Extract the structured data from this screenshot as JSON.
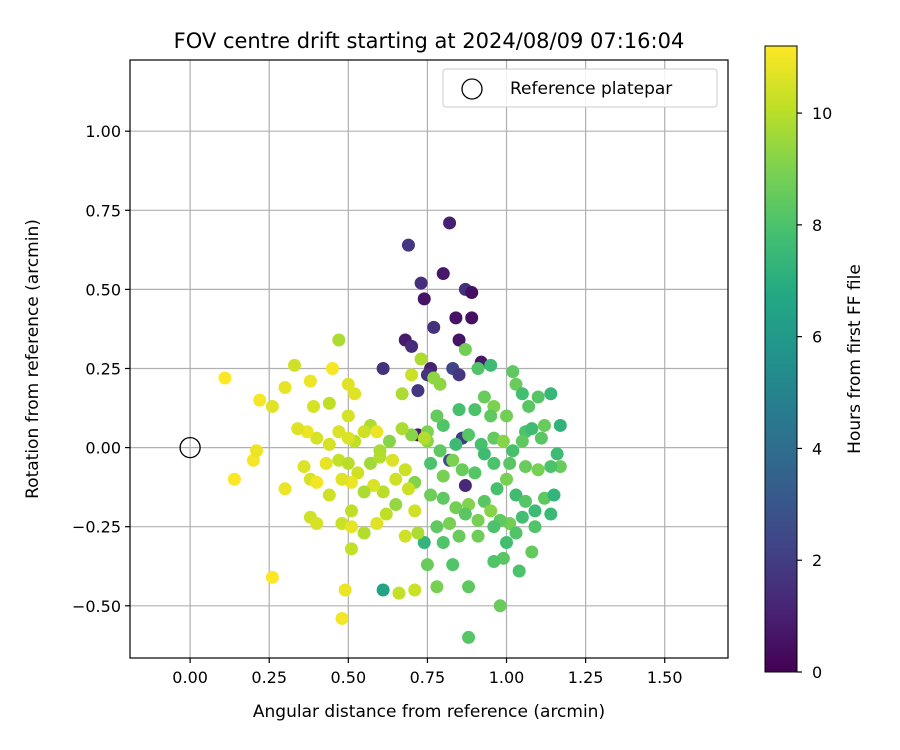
{
  "chart_data": {
    "type": "scatter",
    "title": "FOV centre drift starting at 2024/08/09 07:16:04",
    "xlabel": "Angular distance from reference (arcmin)",
    "ylabel": "Rotation from reference (arcmin)",
    "xlim": [
      -0.19,
      1.7
    ],
    "ylim": [
      -0.665,
      1.225
    ],
    "xticks": [
      0.0,
      0.25,
      0.5,
      0.75,
      1.0,
      1.25,
      1.5
    ],
    "xtick_labels": [
      "0.00",
      "0.25",
      "0.50",
      "0.75",
      "1.00",
      "1.25",
      "1.50"
    ],
    "yticks": [
      -0.5,
      -0.25,
      0.0,
      0.25,
      0.5,
      0.75,
      1.0
    ],
    "ytick_labels": [
      "−0.50",
      "−0.25",
      "0.00",
      "0.25",
      "0.50",
      "0.75",
      "1.00"
    ],
    "grid": true,
    "legend": {
      "placement": "top-right",
      "entries": [
        "Reference platepar"
      ]
    },
    "reference_point": {
      "x": 0.0,
      "y": 0.0,
      "marker": "open-circle",
      "label": "Reference platepar"
    },
    "colorbar": {
      "label": "Hours from first FF file",
      "range": [
        0,
        11.2
      ],
      "ticks": [
        0,
        2,
        4,
        6,
        8,
        10
      ],
      "tick_labels": [
        "0",
        "2",
        "4",
        "6",
        "8",
        "10"
      ],
      "colormap": "viridis"
    },
    "series": [
      {
        "c": "hours_from_first_ff_file",
        "points": [
          [
            0.82,
            0.71,
            1.0
          ],
          [
            0.69,
            0.64,
            1.8
          ],
          [
            0.8,
            0.55,
            0.7
          ],
          [
            0.73,
            0.52,
            1.5
          ],
          [
            0.87,
            0.5,
            1.6
          ],
          [
            0.89,
            0.49,
            0.4
          ],
          [
            0.74,
            0.47,
            0.6
          ],
          [
            0.84,
            0.41,
            0.6
          ],
          [
            0.89,
            0.41,
            0.5
          ],
          [
            0.77,
            0.38,
            1.6
          ],
          [
            0.68,
            0.34,
            0.8
          ],
          [
            0.85,
            0.34,
            0.6
          ],
          [
            0.7,
            0.32,
            1.4
          ],
          [
            0.61,
            0.25,
            1.6
          ],
          [
            0.76,
            0.25,
            1.0
          ],
          [
            0.75,
            0.23,
            1.6
          ],
          [
            0.83,
            0.25,
            2.3
          ],
          [
            0.92,
            0.27,
            0.7
          ],
          [
            0.72,
            0.18,
            1.8
          ],
          [
            0.85,
            0.23,
            1.8
          ],
          [
            0.72,
            0.04,
            0.9
          ],
          [
            0.86,
            0.03,
            1.9
          ],
          [
            0.87,
            -0.12,
            1.3
          ],
          [
            0.82,
            -0.04,
            2.6
          ],
          [
            0.73,
            0.28,
            9.8
          ],
          [
            0.77,
            0.22,
            9.3
          ],
          [
            0.79,
            0.2,
            9.3
          ],
          [
            0.87,
            0.31,
            8.8
          ],
          [
            0.91,
            0.25,
            8.1
          ],
          [
            0.95,
            0.26,
            7.6
          ],
          [
            1.02,
            0.24,
            8.4
          ],
          [
            1.03,
            0.2,
            8.6
          ],
          [
            1.05,
            0.17,
            7.8
          ],
          [
            1.07,
            0.13,
            8.3
          ],
          [
            1.1,
            0.16,
            8.2
          ],
          [
            1.14,
            0.17,
            7.4
          ],
          [
            1.17,
            0.07,
            7.2
          ],
          [
            1.12,
            0.07,
            8.6
          ],
          [
            1.06,
            0.05,
            8.0
          ],
          [
            1.0,
            0.1,
            8.8
          ],
          [
            0.96,
            0.13,
            9.0
          ],
          [
            0.93,
            0.16,
            8.6
          ],
          [
            0.95,
            0.1,
            8.4
          ],
          [
            0.9,
            0.12,
            8.0
          ],
          [
            0.85,
            0.12,
            7.9
          ],
          [
            0.8,
            0.07,
            8.1
          ],
          [
            0.78,
            0.1,
            8.5
          ],
          [
            0.75,
            0.05,
            9.0
          ],
          [
            0.75,
            0.02,
            9.3
          ],
          [
            0.79,
            -0.01,
            8.4
          ],
          [
            0.84,
            0.01,
            7.6
          ],
          [
            0.88,
            0.04,
            8.2
          ],
          [
            0.92,
            0.01,
            7.9
          ],
          [
            0.96,
            0.03,
            8.5
          ],
          [
            0.99,
            0.02,
            9.2
          ],
          [
            1.02,
            -0.01,
            7.9
          ],
          [
            1.05,
            0.02,
            8.4
          ],
          [
            1.08,
            0.06,
            7.7
          ],
          [
            1.11,
            0.03,
            8.3
          ],
          [
            1.16,
            -0.02,
            7.6
          ],
          [
            1.17,
            -0.06,
            8.6
          ],
          [
            1.14,
            -0.06,
            8.0
          ],
          [
            1.1,
            -0.07,
            8.9
          ],
          [
            1.06,
            -0.06,
            8.6
          ],
          [
            1.01,
            -0.05,
            8.3
          ],
          [
            0.96,
            -0.05,
            8.0
          ],
          [
            0.93,
            -0.02,
            7.7
          ],
          [
            0.9,
            -0.08,
            8.2
          ],
          [
            0.86,
            -0.07,
            8.6
          ],
          [
            0.83,
            -0.04,
            9.0
          ],
          [
            0.8,
            -0.09,
            8.9
          ],
          [
            0.76,
            -0.05,
            8.0
          ],
          [
            0.71,
            -0.11,
            9.1
          ],
          [
            0.76,
            -0.15,
            8.7
          ],
          [
            0.8,
            -0.16,
            8.4
          ],
          [
            0.84,
            -0.19,
            8.8
          ],
          [
            0.88,
            -0.18,
            9.1
          ],
          [
            0.93,
            -0.17,
            8.3
          ],
          [
            0.97,
            -0.13,
            7.9
          ],
          [
            1.0,
            -0.1,
            8.9
          ],
          [
            1.03,
            -0.15,
            7.7
          ],
          [
            1.06,
            -0.17,
            8.2
          ],
          [
            1.09,
            -0.2,
            7.6
          ],
          [
            1.12,
            -0.16,
            8.4
          ],
          [
            1.15,
            -0.15,
            7.3
          ],
          [
            1.14,
            -0.21,
            7.5
          ],
          [
            1.09,
            -0.25,
            8.1
          ],
          [
            1.05,
            -0.22,
            7.8
          ],
          [
            1.01,
            -0.24,
            8.8
          ],
          [
            0.98,
            -0.23,
            8.4
          ],
          [
            0.95,
            -0.2,
            9.2
          ],
          [
            0.91,
            -0.23,
            8.9
          ],
          [
            0.87,
            -0.21,
            8.3
          ],
          [
            0.82,
            -0.24,
            8.9
          ],
          [
            0.78,
            -0.25,
            8.4
          ],
          [
            0.74,
            -0.3,
            7.3
          ],
          [
            0.8,
            -0.3,
            8.1
          ],
          [
            0.85,
            -0.28,
            8.6
          ],
          [
            0.91,
            -0.28,
            8.7
          ],
          [
            0.96,
            -0.25,
            8.0
          ],
          [
            1.0,
            -0.3,
            7.8
          ],
          [
            1.03,
            -0.27,
            8.1
          ],
          [
            1.08,
            -0.33,
            8.5
          ],
          [
            1.04,
            -0.39,
            8.0
          ],
          [
            0.99,
            -0.35,
            8.3
          ],
          [
            0.96,
            -0.36,
            8.1
          ],
          [
            0.88,
            -0.44,
            8.4
          ],
          [
            0.83,
            -0.37,
            8.1
          ],
          [
            0.75,
            -0.37,
            8.6
          ],
          [
            0.78,
            -0.44,
            8.9
          ],
          [
            0.98,
            -0.5,
            8.6
          ],
          [
            0.88,
            -0.6,
            8.2
          ],
          [
            0.61,
            -0.45,
            6.5
          ],
          [
            0.66,
            -0.46,
            10.2
          ],
          [
            0.71,
            -0.45,
            10.3
          ],
          [
            0.74,
            0.03,
            9.9
          ],
          [
            0.7,
            0.04,
            9.2
          ],
          [
            0.67,
            0.06,
            9.8
          ],
          [
            0.63,
            0.02,
            9.2
          ],
          [
            0.6,
            -0.01,
            9.8
          ],
          [
            0.57,
            0.07,
            9.8
          ],
          [
            0.55,
            0.05,
            10.4
          ],
          [
            0.52,
            0.02,
            10.1
          ],
          [
            0.47,
            0.05,
            10.6
          ],
          [
            0.44,
            0.01,
            10.5
          ],
          [
            0.4,
            0.03,
            10.5
          ],
          [
            0.37,
            0.05,
            10.9
          ],
          [
            0.36,
            -0.06,
            10.6
          ],
          [
            0.38,
            -0.1,
            10.5
          ],
          [
            0.43,
            -0.05,
            10.8
          ],
          [
            0.47,
            -0.04,
            10.2
          ],
          [
            0.5,
            -0.05,
            10.0
          ],
          [
            0.53,
            -0.08,
            10.4
          ],
          [
            0.57,
            -0.05,
            9.6
          ],
          [
            0.6,
            -0.03,
            9.9
          ],
          [
            0.64,
            -0.04,
            10.6
          ],
          [
            0.68,
            -0.07,
            10.3
          ],
          [
            0.65,
            -0.1,
            10.4
          ],
          [
            0.61,
            -0.14,
            10.0
          ],
          [
            0.58,
            -0.12,
            10.6
          ],
          [
            0.55,
            -0.14,
            9.8
          ],
          [
            0.51,
            -0.11,
            10.9
          ],
          [
            0.48,
            -0.1,
            10.7
          ],
          [
            0.44,
            -0.15,
            10.4
          ],
          [
            0.4,
            -0.11,
            11.0
          ],
          [
            0.38,
            -0.22,
            10.4
          ],
          [
            0.4,
            -0.24,
            10.5
          ],
          [
            0.48,
            -0.24,
            10.3
          ],
          [
            0.51,
            -0.2,
            10.1
          ],
          [
            0.51,
            -0.25,
            10.8
          ],
          [
            0.55,
            -0.27,
            9.9
          ],
          [
            0.59,
            -0.24,
            10.7
          ],
          [
            0.62,
            -0.21,
            10.1
          ],
          [
            0.65,
            -0.18,
            9.4
          ],
          [
            0.69,
            -0.13,
            10.3
          ],
          [
            0.71,
            -0.2,
            10.4
          ],
          [
            0.72,
            -0.27,
            9.8
          ],
          [
            0.68,
            -0.28,
            10.4
          ],
          [
            0.51,
            -0.32,
            10.2
          ],
          [
            0.49,
            -0.45,
            10.9
          ],
          [
            0.48,
            -0.54,
            11.0
          ],
          [
            0.26,
            -0.41,
            11.2
          ],
          [
            0.14,
            -0.1,
            11.2
          ],
          [
            0.2,
            -0.04,
            11.1
          ],
          [
            0.21,
            -0.01,
            10.9
          ],
          [
            0.3,
            -0.13,
            10.9
          ],
          [
            0.34,
            0.06,
            10.7
          ],
          [
            0.26,
            0.13,
            10.7
          ],
          [
            0.22,
            0.15,
            11.1
          ],
          [
            0.11,
            0.22,
            11.2
          ],
          [
            0.3,
            0.19,
            10.8
          ],
          [
            0.33,
            0.26,
            10.4
          ],
          [
            0.38,
            0.21,
            10.9
          ],
          [
            0.39,
            0.13,
            10.5
          ],
          [
            0.44,
            0.14,
            10.1
          ],
          [
            0.45,
            0.25,
            11.1
          ],
          [
            0.47,
            0.34,
            9.8
          ],
          [
            0.5,
            0.2,
            10.7
          ],
          [
            0.52,
            0.17,
            10.7
          ],
          [
            0.5,
            0.1,
            10.5
          ],
          [
            0.5,
            0.03,
            10.6
          ],
          [
            0.59,
            0.05,
            10.9
          ],
          [
            0.67,
            0.17,
            9.8
          ],
          [
            0.7,
            0.23,
            10.3
          ]
        ]
      }
    ]
  }
}
